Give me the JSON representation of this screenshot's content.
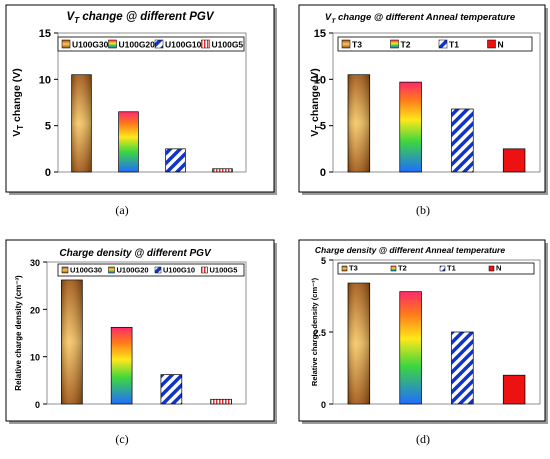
{
  "chart_data": [
    {
      "type": "bar",
      "panel_label": "(a)",
      "title": "V_T change @ different PGV",
      "title_main": "V",
      "title_sub": "T",
      "title_rest": " change @ different PGV",
      "ylabel_main": "V",
      "ylabel_sub": "T",
      "ylabel_rest": " change (V)",
      "categories": [
        "U100G30",
        "U100G20",
        "U100G10",
        "U100G5"
      ],
      "values": [
        10.5,
        6.5,
        2.5,
        0.35
      ],
      "ylim": [
        0,
        15
      ],
      "yticks": [
        "0",
        "5",
        "10",
        "15"
      ],
      "fills": [
        "orange-banded",
        "rainbow",
        "blue-stripe",
        "red-hatch"
      ],
      "legend_position": "top"
    },
    {
      "type": "bar",
      "panel_label": "(b)",
      "title": "V_T change @ different Anneal temperature",
      "title_main": "V",
      "title_sub": "T",
      "title_rest": " change @ different Anneal temperature",
      "ylabel_main": "V",
      "ylabel_sub": "T",
      "ylabel_rest": " change (V)",
      "categories": [
        "T3",
        "T2",
        "T1",
        "N"
      ],
      "values": [
        10.5,
        9.7,
        6.8,
        2.5
      ],
      "ylim": [
        0,
        15
      ],
      "yticks": [
        "0",
        "5",
        "10",
        "15"
      ],
      "fills": [
        "orange-banded",
        "rainbow",
        "blue-stripe",
        "red-solid"
      ],
      "legend_position": "top"
    },
    {
      "type": "bar",
      "panel_label": "(c)",
      "title": "Charge density @ different PGV",
      "ylabel": "Relative charge density (cm⁻³)",
      "categories": [
        "U100G30",
        "U100G20",
        "U100G10",
        "U100G5"
      ],
      "values": [
        26.2,
        16.2,
        6.2,
        1.0
      ],
      "ylim": [
        0,
        30
      ],
      "yticks": [
        "0",
        "10",
        "20",
        "30"
      ],
      "fills": [
        "orange-banded",
        "rainbow",
        "blue-stripe",
        "red-hatch"
      ],
      "legend_position": "top"
    },
    {
      "type": "bar",
      "panel_label": "(d)",
      "title": "Charge density  @ different Anneal temperature",
      "ylabel": "Relative charge density (cm⁻³)",
      "categories": [
        "T3",
        "T2",
        "T1",
        "N"
      ],
      "values": [
        4.2,
        3.9,
        2.5,
        1.0
      ],
      "ylim": [
        0,
        5
      ],
      "yticks": [
        "0",
        "2.5",
        "5"
      ],
      "fills": [
        "orange-banded",
        "rainbow",
        "blue-stripe",
        "red-solid"
      ],
      "legend_position": "top"
    }
  ]
}
